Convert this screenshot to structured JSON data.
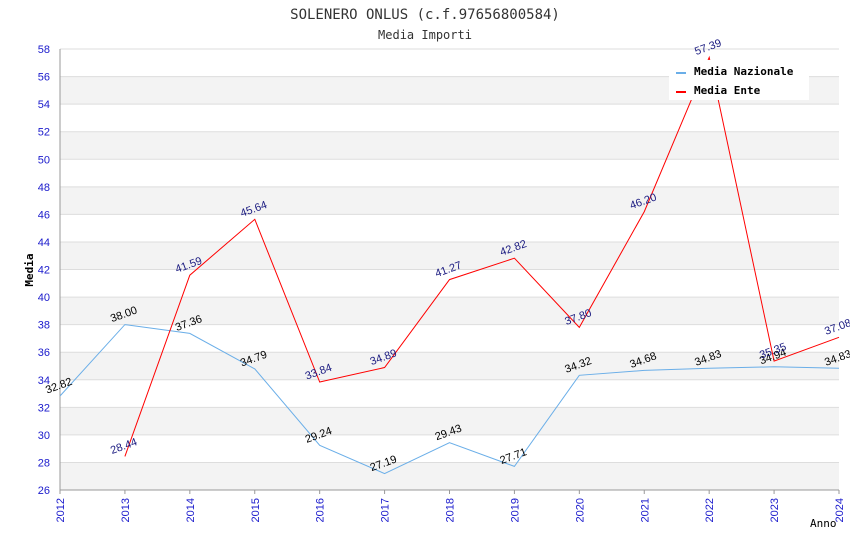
{
  "chart_data": {
    "type": "line",
    "title": "SOLENERO ONLUS (c.f.97656800584)",
    "subtitle": "Media Importi",
    "xlabel": "Anno",
    "ylabel": "Media",
    "x": [
      "2012",
      "2013",
      "2014",
      "2015",
      "2016",
      "2017",
      "2018",
      "2019",
      "2020",
      "2021",
      "2022",
      "2023",
      "2024"
    ],
    "ylim": [
      26,
      58
    ],
    "yticks": [
      "26",
      "28",
      "30",
      "32",
      "34",
      "36",
      "38",
      "40",
      "42",
      "44",
      "46",
      "48",
      "50",
      "52",
      "54",
      "56",
      "58"
    ],
    "grid": true,
    "legend_position": "top-right",
    "series": [
      {
        "name": "Media Nazionale",
        "color": "#6aaee8",
        "label_color": "#000000",
        "values": [
          32.82,
          38.0,
          37.36,
          34.79,
          29.24,
          27.19,
          29.43,
          27.71,
          34.32,
          34.68,
          34.83,
          34.94,
          34.83
        ],
        "labels": [
          "32.82",
          "38.00",
          "37.36",
          "34.79",
          "29.24",
          "27.19",
          "29.43",
          "27.71",
          "34.32",
          "34.68",
          "34.83",
          "34.94",
          "34.83"
        ]
      },
      {
        "name": "Media Ente",
        "color": "#ff0000",
        "label_color": "#1a1a80",
        "values": [
          null,
          28.44,
          41.59,
          45.64,
          33.84,
          34.89,
          41.27,
          42.82,
          37.8,
          46.2,
          57.39,
          35.35,
          37.08
        ],
        "labels": [
          null,
          "28.44",
          "41.59",
          "45.64",
          "33.84",
          "34.89",
          "41.27",
          "42.82",
          "37.80",
          "46.20",
          "57.39",
          "35.35",
          "37.08"
        ]
      }
    ]
  }
}
